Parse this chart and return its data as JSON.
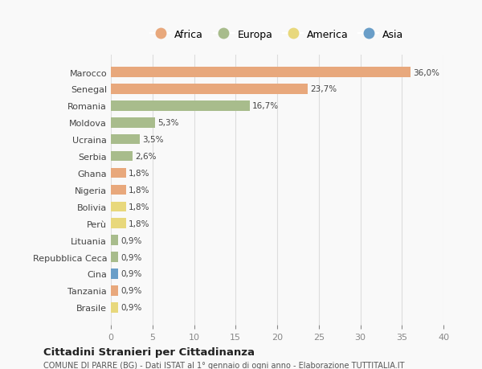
{
  "countries": [
    "Marocco",
    "Senegal",
    "Romania",
    "Moldova",
    "Ucraina",
    "Serbia",
    "Ghana",
    "Nigeria",
    "Bolivia",
    "Perù",
    "Lituania",
    "Repubblica Ceca",
    "Cina",
    "Tanzania",
    "Brasile"
  ],
  "values": [
    36.0,
    23.7,
    16.7,
    5.3,
    3.5,
    2.6,
    1.8,
    1.8,
    1.8,
    1.8,
    0.9,
    0.9,
    0.9,
    0.9,
    0.9
  ],
  "labels": [
    "36,0%",
    "23,7%",
    "16,7%",
    "5,3%",
    "3,5%",
    "2,6%",
    "1,8%",
    "1,8%",
    "1,8%",
    "1,8%",
    "0,9%",
    "0,9%",
    "0,9%",
    "0,9%",
    "0,9%"
  ],
  "continents": [
    "Africa",
    "Africa",
    "Europa",
    "Europa",
    "Europa",
    "Europa",
    "Africa",
    "Africa",
    "America",
    "America",
    "Europa",
    "Europa",
    "Asia",
    "Africa",
    "America"
  ],
  "colors": {
    "Africa": "#E8A87C",
    "Europa": "#A8BC8C",
    "America": "#E8D87C",
    "Asia": "#6A9EC8"
  },
  "legend_order": [
    "Africa",
    "Europa",
    "America",
    "Asia"
  ],
  "xlim": [
    0,
    40
  ],
  "xticks": [
    0,
    5,
    10,
    15,
    20,
    25,
    30,
    35,
    40
  ],
  "title": "Cittadini Stranieri per Cittadinanza",
  "subtitle": "COMUNE DI PARRE (BG) - Dati ISTAT al 1° gennaio di ogni anno - Elaborazione TUTTITALIA.IT",
  "bg_color": "#f9f9f9",
  "grid_color": "#dddddd"
}
